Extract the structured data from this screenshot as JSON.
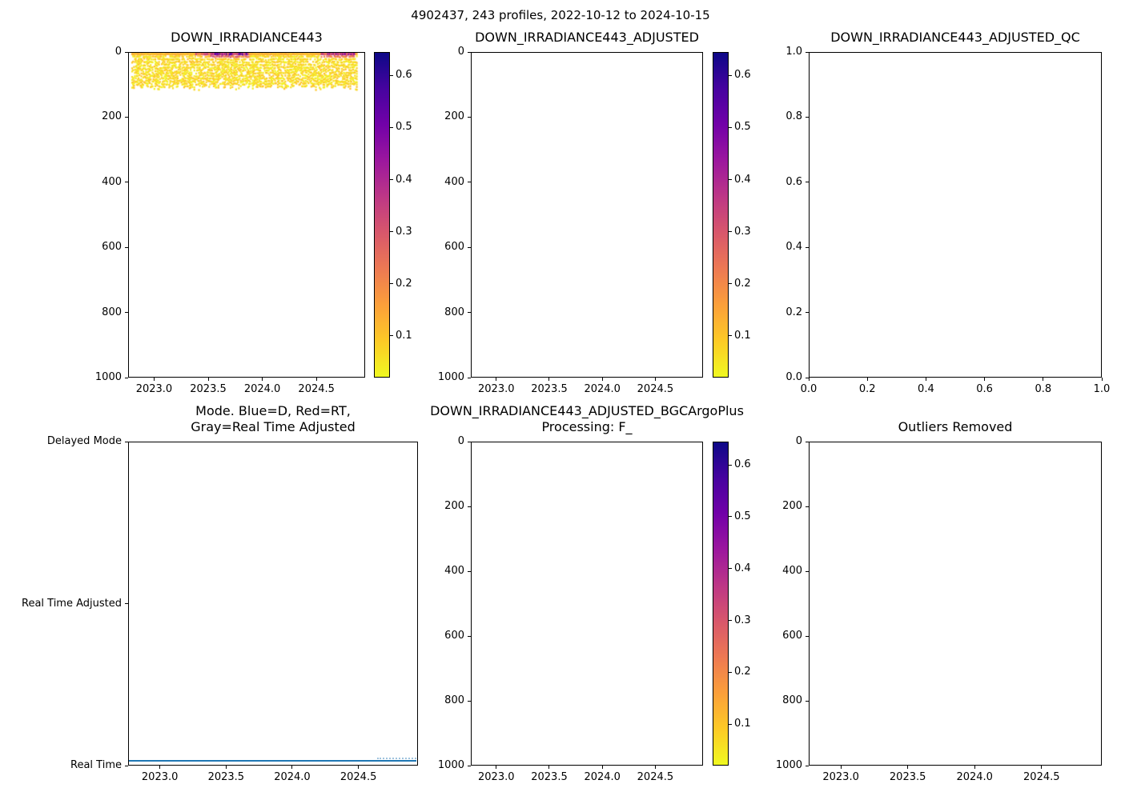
{
  "figure": {
    "title": "4902437, 243 profiles, 2022-10-12 to 2024-10-15",
    "background": "#ffffff"
  },
  "colors": {
    "axis": "#000000",
    "text": "#000000",
    "mode_line_blue": "#1f77b4",
    "mode_line_light_blue": "#9fc3de",
    "plasma_r_stops_top_to_bottom": [
      "#0d0887",
      "#46039f",
      "#7201a8",
      "#9c179e",
      "#bd3786",
      "#d8576b",
      "#ed7953",
      "#fb9f3a",
      "#fdca26",
      "#f0f921"
    ]
  },
  "chart_data": [
    {
      "type": "heatmap",
      "title": "DOWN_IRRADIANCE443",
      "x_tick_labels": [
        "2023.0",
        "2023.5",
        "2024.0",
        "2024.5"
      ],
      "xlim": [
        2022.76,
        2024.95
      ],
      "y_tick_labels": [
        "0",
        "200",
        "400",
        "600",
        "800",
        "1000"
      ],
      "ylim": [
        0,
        1000
      ],
      "y_inverted": true,
      "colorbar": {
        "tick_labels": [
          "0.1",
          "0.2",
          "0.3",
          "0.4",
          "0.5",
          "0.6"
        ],
        "vmin": 0.02,
        "vmax": 0.645
      },
      "series_summary": {
        "n_profiles": 243,
        "time_start": 2022.79,
        "time_end": 2024.88,
        "depth_range_m": [
          0,
          105
        ],
        "background_value_range": [
          0.02,
          0.11
        ],
        "surface_bloom_events": [
          {
            "time_start": 2023.38,
            "time_end": 2023.54,
            "max_depth_m": 10,
            "peak_value": 0.3
          },
          {
            "time_start": 2023.52,
            "time_end": 2023.88,
            "max_depth_m": 18,
            "peak_value": 0.52
          },
          {
            "time_start": 2024.55,
            "time_end": 2024.87,
            "max_depth_m": 16,
            "peak_value": 0.45
          }
        ]
      }
    },
    {
      "type": "empty",
      "title": "DOWN_IRRADIANCE443_ADJUSTED",
      "x_tick_labels": [
        "2023.0",
        "2023.5",
        "2024.0",
        "2024.5"
      ],
      "xlim": [
        2022.76,
        2024.95
      ],
      "y_tick_labels": [
        "0",
        "200",
        "400",
        "600",
        "800",
        "1000"
      ],
      "ylim": [
        0,
        1000
      ],
      "y_inverted": true,
      "colorbar": {
        "tick_labels": [
          "0.1",
          "0.2",
          "0.3",
          "0.4",
          "0.5",
          "0.6"
        ],
        "vmin": 0.02,
        "vmax": 0.645
      }
    },
    {
      "type": "empty",
      "title": "DOWN_IRRADIANCE443_ADJUSTED_QC",
      "x_tick_labels": [
        "0.0",
        "0.2",
        "0.4",
        "0.6",
        "0.8",
        "1.0"
      ],
      "xlim": [
        0,
        1
      ],
      "y_tick_labels": [
        "0.0",
        "0.2",
        "0.4",
        "0.6",
        "0.8",
        "1.0"
      ],
      "ylim": [
        0,
        1
      ],
      "y_inverted": false
    },
    {
      "type": "categorical_line",
      "title_lines": [
        "Mode. Blue=D, Red=RT,",
        "Gray=Real Time Adjusted"
      ],
      "x_tick_labels": [
        "2023.0",
        "2023.5",
        "2024.0",
        "2024.5"
      ],
      "xlim": [
        2022.76,
        2024.95
      ],
      "y_category_labels": [
        "Delayed Mode",
        "Real Time Adjusted",
        "Real Time"
      ],
      "line": {
        "category": "Real Time",
        "time_start": 2022.79,
        "time_end": 2024.88,
        "color": "#1f77b4"
      }
    },
    {
      "type": "empty",
      "title_lines": [
        "DOWN_IRRADIANCE443_ADJUSTED_BGCArgoPlus",
        "Processing: F_"
      ],
      "x_tick_labels": [
        "2023.0",
        "2023.5",
        "2024.0",
        "2024.5"
      ],
      "xlim": [
        2022.76,
        2024.95
      ],
      "y_tick_labels": [
        "0",
        "200",
        "400",
        "600",
        "800",
        "1000"
      ],
      "ylim": [
        0,
        1000
      ],
      "y_inverted": true,
      "colorbar": {
        "tick_labels": [
          "0.1",
          "0.2",
          "0.3",
          "0.4",
          "0.5",
          "0.6"
        ],
        "vmin": 0.02,
        "vmax": 0.645
      }
    },
    {
      "type": "empty",
      "title": "Outliers Removed",
      "x_tick_labels": [
        "2023.0",
        "2023.5",
        "2024.0",
        "2024.5"
      ],
      "xlim": [
        2022.76,
        2024.95
      ],
      "y_tick_labels": [
        "0",
        "200",
        "400",
        "600",
        "800",
        "1000"
      ],
      "ylim": [
        0,
        1000
      ],
      "y_inverted": true
    }
  ]
}
